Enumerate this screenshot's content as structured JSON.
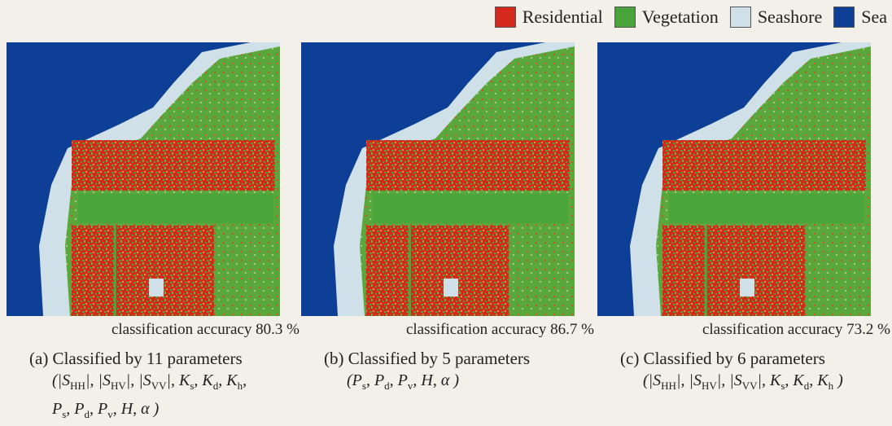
{
  "legend": [
    {
      "label": "Residential",
      "color": "#d42a1e"
    },
    {
      "label": "Vegetation",
      "color": "#48a43a"
    },
    {
      "label": "Seashore",
      "color": "#cfe0e8"
    },
    {
      "label": "Sea",
      "color": "#0c3f95"
    }
  ],
  "panels": [
    {
      "accuracy": "classification accuracy 80.3 %",
      "caption": "(a) Classified by 11 parameters",
      "open": "(",
      "close": ")",
      "separator": ",",
      "lines": [
        [
          {
            "text": "|S",
            "sub": "HH",
            "post": "|"
          },
          {
            "text": "|S",
            "sub": "HV",
            "post": "|"
          },
          {
            "text": "|S",
            "sub": "VV",
            "post": "|"
          },
          {
            "text": "K",
            "sub": "s"
          },
          {
            "text": "K",
            "sub": "d"
          },
          {
            "text": "K",
            "sub": "h"
          }
        ],
        [
          {
            "text": "P",
            "sub": "s"
          },
          {
            "text": "P",
            "sub": "d"
          },
          {
            "text": "P",
            "sub": "v"
          },
          {
            "text": "H"
          },
          {
            "text": "α"
          }
        ]
      ]
    },
    {
      "accuracy": "classification accuracy 86.7 %",
      "caption": "(b) Classified by 5 parameters",
      "open": "(",
      "close": ")",
      "separator": ",",
      "lines": [
        [
          {
            "text": "P",
            "sub": "s"
          },
          {
            "text": "P",
            "sub": "d"
          },
          {
            "text": "P",
            "sub": "v"
          },
          {
            "text": "H"
          },
          {
            "text": "α"
          }
        ]
      ]
    },
    {
      "accuracy": "classification accuracy 73.2 %",
      "caption": "(c) Classified by 6 parameters",
      "open": "(",
      "close": ")",
      "separator": ",",
      "lines": [
        [
          {
            "text": "|S",
            "sub": "HH",
            "post": "|"
          },
          {
            "text": "|S",
            "sub": "HV",
            "post": "|"
          },
          {
            "text": "|S",
            "sub": "VV",
            "post": "|"
          },
          {
            "text": "K",
            "sub": "s"
          },
          {
            "text": "K",
            "sub": "d"
          },
          {
            "text": "K",
            "sub": "h"
          }
        ]
      ]
    }
  ]
}
